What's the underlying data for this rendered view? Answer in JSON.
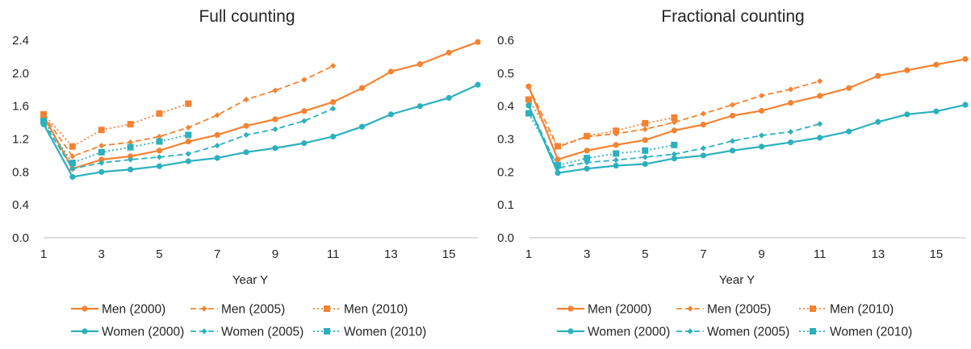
{
  "colors": {
    "men": "#F58231",
    "women": "#2CB0BE",
    "axis": "#BFBFBF",
    "text": "#262626"
  },
  "chart_data": [
    {
      "type": "line",
      "title": "Full counting",
      "xlabel": "Year Y",
      "ylabel": "",
      "xlim": [
        1,
        16
      ],
      "ylim": [
        0,
        2.4
      ],
      "xticks": [
        "1",
        "3",
        "5",
        "7",
        "9",
        "11",
        "13",
        "15"
      ],
      "yticks": [
        "0.0",
        "0.4",
        "0.8",
        "1.2",
        "1.6",
        "2.0",
        "2.4"
      ],
      "grid": false,
      "legend": "bottom",
      "series": [
        {
          "name": "Men (2000)",
          "group": "men",
          "style": "solid",
          "marker": "circle",
          "x": [
            1,
            2,
            3,
            4,
            5,
            6,
            7,
            8,
            9,
            10,
            11,
            12,
            13,
            14,
            15,
            16
          ],
          "y": [
            1.48,
            0.84,
            0.95,
            0.99,
            1.06,
            1.17,
            1.25,
            1.36,
            1.44,
            1.54,
            1.65,
            1.82,
            2.02,
            2.11,
            2.25,
            2.38
          ]
        },
        {
          "name": "Men (2005)",
          "group": "men",
          "style": "dash",
          "marker": "diamond",
          "x": [
            1,
            2,
            3,
            4,
            5,
            6,
            7,
            8,
            9,
            10,
            11
          ],
          "y": [
            1.49,
            0.99,
            1.12,
            1.16,
            1.23,
            1.34,
            1.49,
            1.68,
            1.79,
            1.92,
            2.09
          ]
        },
        {
          "name": "Men (2010)",
          "group": "men",
          "style": "dot",
          "marker": "square",
          "x": [
            1,
            2,
            3,
            4,
            5,
            6
          ],
          "y": [
            1.5,
            1.11,
            1.31,
            1.38,
            1.51,
            1.63
          ]
        },
        {
          "name": "Women (2000)",
          "group": "women",
          "style": "solid",
          "marker": "circle",
          "x": [
            1,
            2,
            3,
            4,
            5,
            6,
            7,
            8,
            9,
            10,
            11,
            12,
            13,
            14,
            15,
            16
          ],
          "y": [
            1.38,
            0.74,
            0.8,
            0.83,
            0.87,
            0.93,
            0.97,
            1.04,
            1.09,
            1.15,
            1.23,
            1.35,
            1.5,
            1.6,
            1.7,
            1.86
          ]
        },
        {
          "name": "Women (2005)",
          "group": "women",
          "style": "dash",
          "marker": "diamond",
          "x": [
            1,
            2,
            3,
            4,
            5,
            6,
            7,
            8,
            9,
            10,
            11
          ],
          "y": [
            1.4,
            0.84,
            0.91,
            0.95,
            0.98,
            1.02,
            1.12,
            1.25,
            1.32,
            1.42,
            1.57
          ]
        },
        {
          "name": "Women (2010)",
          "group": "women",
          "style": "dot",
          "marker": "square",
          "x": [
            1,
            2,
            3,
            4,
            5,
            6
          ],
          "y": [
            1.42,
            0.91,
            1.04,
            1.1,
            1.17,
            1.25
          ]
        }
      ]
    },
    {
      "type": "line",
      "title": "Fractional counting",
      "xlabel": "Year Y",
      "ylabel": "",
      "xlim": [
        1,
        16
      ],
      "ylim": [
        0,
        0.6
      ],
      "xticks": [
        "1",
        "3",
        "5",
        "7",
        "9",
        "11",
        "13",
        "15"
      ],
      "yticks": [
        "0.0",
        "0.1",
        "0.2",
        "0.3",
        "0.4",
        "0.5",
        "0.6"
      ],
      "grid": false,
      "legend": "bottom",
      "series": [
        {
          "name": "Men (2000)",
          "group": "men",
          "style": "solid",
          "marker": "circle",
          "x": [
            1,
            2,
            3,
            4,
            5,
            6,
            7,
            8,
            9,
            10,
            11,
            12,
            13,
            14,
            15,
            16
          ],
          "y": [
            0.46,
            0.238,
            0.265,
            0.282,
            0.297,
            0.326,
            0.344,
            0.371,
            0.386,
            0.41,
            0.431,
            0.455,
            0.492,
            0.509,
            0.526,
            0.543
          ]
        },
        {
          "name": "Men (2005)",
          "group": "men",
          "style": "dash",
          "marker": "diamond",
          "x": [
            1,
            2,
            3,
            4,
            5,
            6,
            7,
            8,
            9,
            10,
            11
          ],
          "y": [
            0.458,
            0.276,
            0.307,
            0.316,
            0.33,
            0.351,
            0.377,
            0.404,
            0.432,
            0.451,
            0.476
          ]
        },
        {
          "name": "Men (2010)",
          "group": "men",
          "style": "dot",
          "marker": "square",
          "x": [
            1,
            2,
            3,
            4,
            5,
            6
          ],
          "y": [
            0.42,
            0.278,
            0.309,
            0.325,
            0.348,
            0.365
          ]
        },
        {
          "name": "Women (2000)",
          "group": "women",
          "style": "solid",
          "marker": "circle",
          "x": [
            1,
            2,
            3,
            4,
            5,
            6,
            7,
            8,
            9,
            10,
            11,
            12,
            13,
            14,
            15,
            16
          ],
          "y": [
            0.402,
            0.197,
            0.21,
            0.219,
            0.224,
            0.241,
            0.25,
            0.265,
            0.277,
            0.29,
            0.304,
            0.323,
            0.352,
            0.375,
            0.384,
            0.404
          ]
        },
        {
          "name": "Women (2005)",
          "group": "women",
          "style": "dash",
          "marker": "diamond",
          "x": [
            1,
            2,
            3,
            4,
            5,
            6,
            7,
            8,
            9,
            10,
            11
          ],
          "y": [
            0.402,
            0.212,
            0.229,
            0.236,
            0.245,
            0.254,
            0.272,
            0.294,
            0.311,
            0.322,
            0.346
          ]
        },
        {
          "name": "Women (2010)",
          "group": "women",
          "style": "dot",
          "marker": "square",
          "x": [
            1,
            2,
            3,
            4,
            5,
            6
          ],
          "y": [
            0.378,
            0.22,
            0.242,
            0.256,
            0.265,
            0.282
          ]
        }
      ]
    }
  ]
}
